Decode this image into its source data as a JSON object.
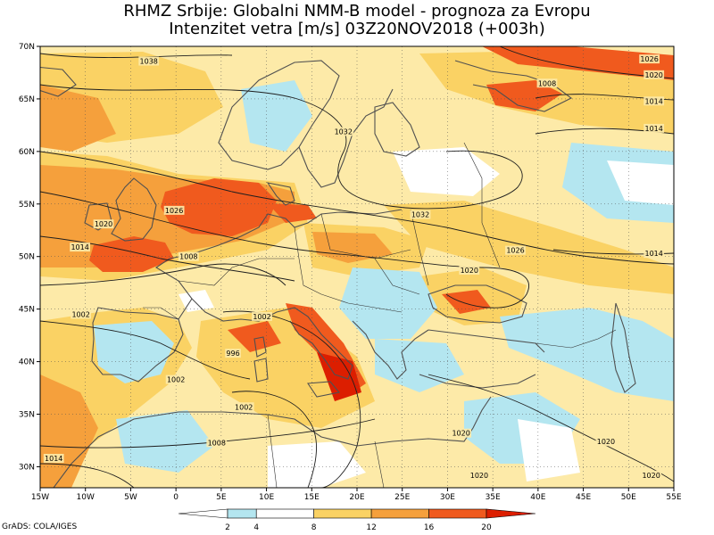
{
  "title": {
    "line1": "RHMZ Srbije: Globalni NMM-B model - prognoza za Evropu",
    "line2": "Intenzitet vetra [m/s] 03Z20NOV2018 (+003h)"
  },
  "axes": {
    "lat_labels": [
      "70N",
      "65N",
      "60N",
      "55N",
      "50N",
      "45N",
      "40N",
      "35N",
      "30N"
    ],
    "lon_labels": [
      "15W",
      "10W",
      "5W",
      "0",
      "5E",
      "10E",
      "15E",
      "20E",
      "25E",
      "30E",
      "35E",
      "40E",
      "45E",
      "50E",
      "55E"
    ]
  },
  "isobar_labels": [
    {
      "text": "1038",
      "lon": -3.0,
      "lat": 68.6
    },
    {
      "text": "1032",
      "lon": 18.5,
      "lat": 61.9
    },
    {
      "text": "1026",
      "lon": -0.2,
      "lat": 54.4
    },
    {
      "text": "1020",
      "lon": -8.0,
      "lat": 53.1
    },
    {
      "text": "1014",
      "lon": -10.6,
      "lat": 50.9
    },
    {
      "text": "1008",
      "lon": 1.4,
      "lat": 50.0
    },
    {
      "text": "1032",
      "lon": 27.0,
      "lat": 54.0
    },
    {
      "text": "1026",
      "lon": 37.5,
      "lat": 50.6
    },
    {
      "text": "1020",
      "lon": 32.4,
      "lat": 48.7
    },
    {
      "text": "1002",
      "lon": -10.5,
      "lat": 44.5
    },
    {
      "text": "1002",
      "lon": 9.5,
      "lat": 44.3
    },
    {
      "text": "996",
      "lon": 6.3,
      "lat": 40.8
    },
    {
      "text": "1002",
      "lon": 0.0,
      "lat": 38.3
    },
    {
      "text": "1002",
      "lon": 7.5,
      "lat": 35.7
    },
    {
      "text": "1008",
      "lon": 4.5,
      "lat": 32.3
    },
    {
      "text": "1014",
      "lon": -13.5,
      "lat": 30.8
    },
    {
      "text": "1020",
      "lon": 31.5,
      "lat": 33.2
    },
    {
      "text": "1020",
      "lon": 47.5,
      "lat": 32.4
    },
    {
      "text": "1020",
      "lon": 52.5,
      "lat": 29.2
    },
    {
      "text": "1020",
      "lon": 33.5,
      "lat": 29.2
    },
    {
      "text": "1008",
      "lon": 41.0,
      "lat": 66.5
    },
    {
      "text": "1026",
      "lon": 52.3,
      "lat": 68.8
    },
    {
      "text": "1020",
      "lon": 52.8,
      "lat": 67.3
    },
    {
      "text": "1014",
      "lon": 52.8,
      "lat": 64.8
    },
    {
      "text": "1014",
      "lon": 52.8,
      "lat": 62.2
    },
    {
      "text": "1014",
      "lon": 52.8,
      "lat": 50.3
    }
  ],
  "legend": {
    "ticks": [
      "2",
      "4",
      "8",
      "12",
      "16",
      "20"
    ],
    "bins": [
      {
        "from": 0,
        "to": 2,
        "color": "#ffffff"
      },
      {
        "from": 2,
        "to": 4,
        "color": "#b4e6f0"
      },
      {
        "from": 4,
        "to": 8,
        "color": "#ffffff"
      },
      {
        "from": 8,
        "to": 12,
        "color": "#fad264"
      },
      {
        "from": 12,
        "to": 16,
        "color": "#f5a03c"
      },
      {
        "from": 16,
        "to": 20,
        "color": "#f05a1e"
      },
      {
        "from": 20,
        "to": 24,
        "color": "#dc1e00"
      }
    ]
  },
  "colors": {
    "calm": "#ffffff",
    "light": "#b4e6f0",
    "moderate": "#fdeaa8",
    "fresh": "#fad264",
    "strong": "#f5a03c",
    "gale": "#f05a1e",
    "storm": "#dc1e00",
    "coast": "#505050"
  },
  "credit": "GrADS: COLA/IGES"
}
